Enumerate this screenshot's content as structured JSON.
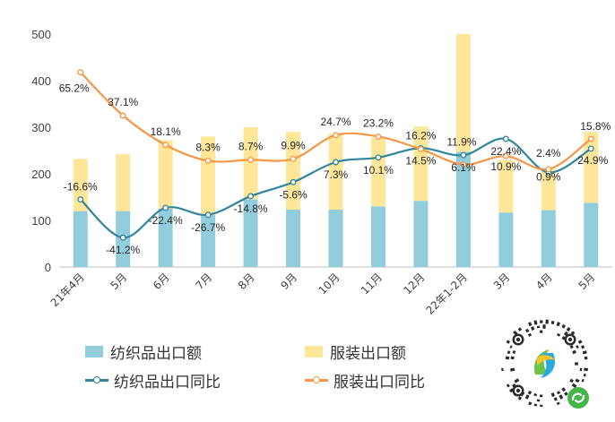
{
  "chart_data": {
    "type": "bar",
    "categories": [
      "21年4月",
      "5月",
      "6月",
      "7月",
      "8月",
      "9月",
      "10月",
      "11月",
      "12月",
      "22年1-2月",
      "3月",
      "4月",
      "5月"
    ],
    "ylim": [
      0,
      500
    ],
    "yticks": [
      0,
      100,
      200,
      300,
      400,
      500
    ],
    "grid": false,
    "legend_position": "bottom",
    "series": [
      {
        "name": "纺织品出口额",
        "kind": "bar",
        "color": "#92CDDC",
        "values": [
          120,
          120,
          125,
          112,
          145,
          123,
          123,
          130,
          142,
          247,
          117,
          122,
          138
        ]
      },
      {
        "name": "服装出口额",
        "kind": "bar",
        "color": "#FFE699",
        "values": [
          112,
          122,
          147,
          168,
          155,
          167,
          163,
          147,
          160,
          253,
          113,
          88,
          152
        ]
      },
      {
        "name": "纺织品出口同比",
        "kind": "line",
        "color": "#31859C",
        "values": [
          145,
          63,
          127,
          112,
          152,
          182,
          225,
          235,
          255,
          240,
          275,
          203,
          254
        ],
        "labels": [
          "-16.6%",
          "-41.2%",
          "-22.4%",
          "-26.7%",
          "-14.8%",
          "-5.6%",
          "7.3%",
          "10.1%",
          "14.5%",
          "6.1%",
          "22.4%",
          "0.9%",
          "24.9%"
        ]
      },
      {
        "name": "服装出口同比",
        "kind": "line",
        "color": "#F79646",
        "values": [
          418,
          325,
          262,
          228,
          230,
          232,
          283,
          280,
          253,
          220,
          238,
          210,
          275
        ],
        "labels": [
          "65.2%",
          "37.1%",
          "18.1%",
          "8.3%",
          "8.7%",
          "9.9%",
          "24.7%",
          "23.2%",
          "16.2%",
          "11.9%",
          "10.9%",
          "2.4%",
          "15.8%"
        ]
      }
    ]
  },
  "legend": {
    "textile_value": "纺织品出口额",
    "apparel_value": "服装出口额",
    "textile_yoy": "纺织品出口同比",
    "apparel_yoy": "服装出口同比"
  },
  "colors": {
    "textile_bar": "#92CDDC",
    "apparel_bar": "#FFE699",
    "textile_line": "#31859C",
    "apparel_line": "#F79646",
    "axis": "#BFBFBF",
    "text": "#404040"
  },
  "badge": {
    "icon": "mini-program-qr-code-icon"
  }
}
